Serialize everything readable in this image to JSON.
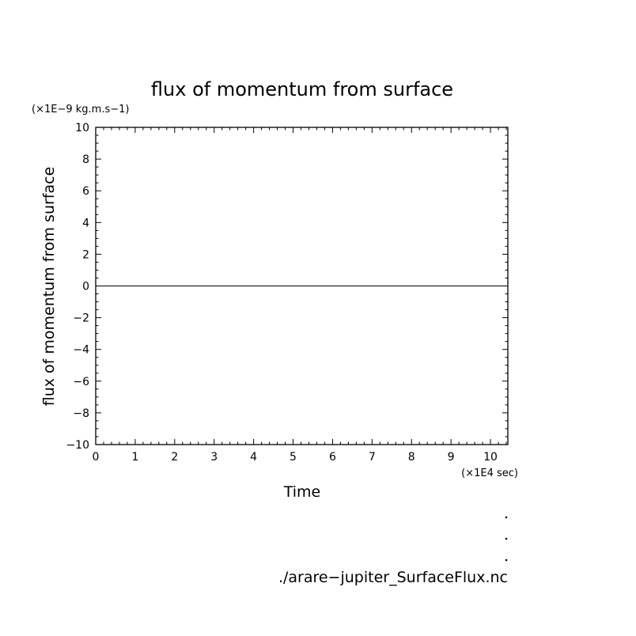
{
  "chart_data": {
    "type": "line",
    "title": "flux of momentum from surface",
    "ylabel": "flux of momentum from surface",
    "xlabel": "Time",
    "y_unit": "(×1E−9 kg.m.s−1)",
    "x_unit": "(×1E4 sec)",
    "xlim": [
      0,
      10.44
    ],
    "ylim": [
      -10,
      10
    ],
    "x_ticks": [
      0,
      1,
      2,
      3,
      4,
      5,
      6,
      7,
      8,
      9,
      10
    ],
    "x_tick_labels": [
      "0",
      "1",
      "2",
      "3",
      "4",
      "5",
      "6",
      "7",
      "8",
      "9",
      "10"
    ],
    "y_ticks": [
      -10,
      -8,
      -6,
      -4,
      -2,
      0,
      2,
      4,
      6,
      8,
      10
    ],
    "y_tick_labels": [
      "−10",
      "−8",
      "−6",
      "−4",
      "−2",
      "0",
      "2",
      "4",
      "6",
      "8",
      "10"
    ],
    "series": [
      {
        "x": [
          0,
          10.44
        ],
        "y": [
          0,
          0
        ]
      }
    ],
    "grid": false
  },
  "footer": {
    "filename": "./arare−jupiter_SurfaceFlux.nc"
  }
}
